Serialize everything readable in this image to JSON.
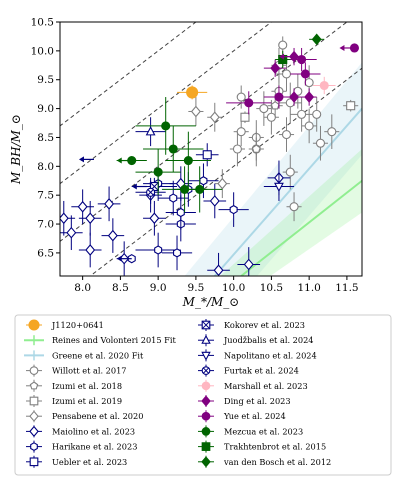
{
  "chart_data": {
    "type": "scatter",
    "xlabel": "M_*/M_⊙",
    "ylabel": "M_BH/M_⊙",
    "xlim": [
      7.7,
      11.7
    ],
    "ylim": [
      6.1,
      10.5
    ],
    "xticks": [
      "8.0",
      "8.5",
      "9.0",
      "9.5",
      "10.0",
      "10.5",
      "11.0",
      "11.5"
    ],
    "yticks": [
      "6.5",
      "7.0",
      "7.5",
      "8.0",
      "8.5",
      "9.0",
      "9.5",
      "10.0",
      "10.5"
    ],
    "xtick_values": [
      8.0,
      8.5,
      9.0,
      9.5,
      10.0,
      10.5,
      11.0,
      11.5
    ],
    "ytick_values": [
      6.5,
      7.0,
      7.5,
      8.0,
      8.5,
      9.0,
      9.5,
      10.0,
      10.5
    ],
    "grid": false,
    "legend_placement": "below",
    "dashed_lines": [
      {
        "offset": -2.0
      },
      {
        "offset": -1.0
      },
      {
        "offset": 0.0
      },
      {
        "offset": 1.0
      }
    ],
    "fits": [
      {
        "name": "Reines and Volonteri 2015 Fit",
        "color": "#90ee90",
        "x": [
          10.1,
          11.7
        ],
        "y": [
          6.1,
          7.75
        ],
        "band": 0.55
      },
      {
        "name": "Greene et al. 2020 Fit",
        "color": "#add8e6",
        "x": [
          9.75,
          11.7
        ],
        "y": [
          6.1,
          9.0
        ],
        "band": 0.8
      }
    ],
    "series": [
      {
        "name": "J1120+0641",
        "marker": "circle-filled",
        "color": "#f5a623",
        "points": [
          [
            9.45,
            9.28,
            0.2,
            0.12
          ]
        ]
      },
      {
        "name": "Willott et al. 2017",
        "marker": "circle-open",
        "color": "#808080",
        "points": [
          [
            10.65,
            10.1,
            0.0,
            0.15
          ],
          [
            10.6,
            9.75,
            0.1,
            0.3
          ],
          [
            10.7,
            9.6,
            0.15,
            0.3
          ],
          [
            10.6,
            9.3,
            0.1,
            0.3
          ],
          [
            10.75,
            9.1,
            0.15,
            0.35
          ],
          [
            10.9,
            8.9,
            0.15,
            0.3
          ],
          [
            10.5,
            8.85,
            0.1,
            0.3
          ],
          [
            10.1,
            8.6,
            0.1,
            0.25
          ],
          [
            10.05,
            8.3,
            0.1,
            0.3
          ],
          [
            10.3,
            8.5,
            0.1,
            0.3
          ],
          [
            10.7,
            8.55,
            0.1,
            0.3
          ],
          [
            11.0,
            8.7,
            0.1,
            0.3
          ],
          [
            11.15,
            8.4,
            0.1,
            0.3
          ],
          [
            11.3,
            8.6,
            0.1,
            0.3
          ],
          [
            10.75,
            7.9,
            0.1,
            0.3
          ],
          [
            10.8,
            7.3,
            0.1,
            0.25
          ],
          [
            10.4,
            9.0,
            0.1,
            0.3
          ],
          [
            10.1,
            9.2,
            0.05,
            0.2
          ],
          [
            10.3,
            8.3,
            0.05,
            0.3
          ],
          [
            11.1,
            8.9,
            0.05,
            0.3
          ],
          [
            10.85,
            9.3,
            0.05,
            0.3
          ],
          [
            11.0,
            9.45,
            0.05,
            0.3
          ]
        ]
      },
      {
        "name": "Izumi et al. 2018",
        "marker": "pentagon-open",
        "color": "#808080",
        "points": [
          [
            10.3,
            8.3,
            0.1,
            0.2
          ],
          [
            10.55,
            9.05,
            0.1,
            0.2
          ]
        ]
      },
      {
        "name": "Izumi et al. 2019",
        "marker": "square-open",
        "color": "#808080",
        "points": [
          [
            11.55,
            9.05,
            0.1,
            0.1
          ],
          [
            10.15,
            8.85,
            0.05,
            0.1
          ]
        ]
      },
      {
        "name": "Pensabene et al. 2020",
        "marker": "diamond-open",
        "color": "#808080",
        "points": [
          [
            9.75,
            8.85,
            0.1,
            0.25
          ],
          [
            9.85,
            7.7,
            0.1,
            0.25
          ],
          [
            9.5,
            8.95,
            0.1,
            0.25
          ]
        ]
      },
      {
        "name": "Maiolino et al. 2023",
        "marker": "diamond-open",
        "color": "#00007f",
        "points": [
          [
            7.75,
            7.1,
            0.15,
            0.3
          ],
          [
            7.85,
            6.85,
            0.15,
            0.3
          ],
          [
            8.0,
            7.3,
            0.15,
            0.3
          ],
          [
            8.1,
            6.55,
            0.15,
            0.3
          ],
          [
            8.35,
            7.35,
            0.15,
            0.3
          ],
          [
            8.4,
            6.8,
            0.15,
            0.3
          ],
          [
            8.55,
            6.4,
            0.1,
            0.3
          ],
          [
            8.9,
            7.5,
            0.15,
            0.3
          ],
          [
            8.95,
            7.1,
            0.15,
            0.3
          ],
          [
            9.3,
            7.7,
            0.15,
            0.3
          ],
          [
            9.75,
            7.4,
            0.15,
            0.3
          ],
          [
            9.8,
            6.2,
            0.15,
            0.3
          ],
          [
            10.2,
            6.3,
            0.15,
            0.3
          ],
          [
            10.6,
            7.8,
            0.15,
            0.3
          ],
          [
            8.1,
            7.1,
            0.15,
            0.3
          ]
        ]
      },
      {
        "name": "Harikane et al. 2023",
        "marker": "hexagon-open",
        "color": "#00007f",
        "points": [
          [
            8.65,
            6.4,
            0.0,
            0.0
          ],
          [
            9.0,
            6.55,
            0.3,
            0.3
          ],
          [
            9.25,
            6.5,
            0.2,
            0.3
          ],
          [
            9.3,
            7.0,
            0.2,
            0.3
          ],
          [
            9.0,
            7.7,
            0.2,
            0.3
          ],
          [
            9.4,
            7.6,
            0.2,
            0.3
          ],
          [
            9.6,
            7.75,
            0.2,
            0.3
          ],
          [
            10.0,
            7.25,
            0.2,
            0.3
          ],
          [
            9.2,
            7.45,
            0.2,
            0.3
          ],
          [
            9.3,
            7.2,
            0.2,
            0.3
          ]
        ]
      },
      {
        "name": "Uebler et al. 2023",
        "marker": "square-open",
        "color": "#00007f",
        "points": [
          [
            9.65,
            8.2,
            0.15,
            0.2
          ]
        ]
      },
      {
        "name": "Kokorev et al. 2023",
        "marker": "square-x",
        "color": "#00007f",
        "points": [
          [
            8.95,
            7.65,
            0.3,
            0.15
          ]
        ]
      },
      {
        "name": "Juodžbalis et al. 2024",
        "marker": "triangle-up-open",
        "color": "#00007f",
        "points": [
          [
            8.9,
            8.6,
            0.2,
            0.25
          ]
        ]
      },
      {
        "name": "Napolitano et al. 2024",
        "marker": "triangle-down-open",
        "color": "#00007f",
        "points": [
          [
            10.6,
            7.65,
            0.2,
            0.25
          ]
        ]
      },
      {
        "name": "Furtak et al. 2024",
        "marker": "circle-x",
        "color": "#00007f",
        "points": [
          [
            8.9,
            7.55,
            0.2,
            0.2
          ]
        ]
      },
      {
        "name": "Marshall et al. 2023",
        "marker": "circle-filled",
        "color": "#ffb6c1",
        "points": [
          [
            11.2,
            9.4,
            0.15,
            0.15
          ]
        ]
      },
      {
        "name": "Ding et al. 2023",
        "marker": "diamond-filled",
        "color": "#800080",
        "points": [
          [
            10.55,
            9.7,
            0.15,
            0.15
          ],
          [
            10.8,
            9.9,
            0.1,
            0.15
          ],
          [
            10.8,
            9.2,
            0.1,
            0.15
          ],
          [
            11.0,
            9.2,
            0.1,
            0.15
          ]
        ]
      },
      {
        "name": "Yue et al. 2024",
        "marker": "circle-filled",
        "color": "#800080",
        "points": [
          [
            11.6,
            10.05,
            0.0,
            0.0
          ],
          [
            10.2,
            9.1,
            0.3,
            0.2
          ],
          [
            10.6,
            9.2,
            0.2,
            0.2
          ],
          [
            10.95,
            9.6,
            0.2,
            0.2
          ],
          [
            10.9,
            9.85,
            0.2,
            0.2
          ]
        ]
      },
      {
        "name": "Mezcua et al. 2023",
        "marker": "circle-filled",
        "color": "#006400",
        "points": [
          [
            8.65,
            8.1,
            0.2,
            0.0
          ],
          [
            9.0,
            7.9,
            0.3,
            0.4
          ],
          [
            9.1,
            8.7,
            0.4,
            0.5
          ],
          [
            9.2,
            8.3,
            0.4,
            0.4
          ],
          [
            9.35,
            7.6,
            0.3,
            0.4
          ],
          [
            9.4,
            8.1,
            0.3,
            0.5
          ],
          [
            9.55,
            7.6,
            0.3,
            0.4
          ]
        ]
      },
      {
        "name": "Trakhtenbrot et al. 2015",
        "marker": "square-filled",
        "color": "#006400",
        "points": [
          [
            10.65,
            9.85,
            0.1,
            0.15
          ]
        ]
      },
      {
        "name": "van den Bosch et al. 2012",
        "marker": "diamond-filled",
        "color": "#006400",
        "points": [
          [
            11.1,
            10.2,
            0.1,
            0.05
          ]
        ]
      }
    ],
    "upper_limits_x": [
      {
        "series": "Harikane et al. 2023",
        "x": 8.65,
        "y": 6.4
      },
      {
        "series": "Yue et al. 2024",
        "x": 11.6,
        "y": 10.05
      },
      {
        "series": "Mezcua et al. 2023",
        "x": 8.65,
        "y": 8.1
      },
      {
        "series": "Maiolino et al. 2023",
        "x": 8.15,
        "y": 8.12
      },
      {
        "series": "Kokorev et al. 2023",
        "x": 8.85,
        "y": 7.65
      },
      {
        "series": "Ding et al. 2023",
        "x": 10.8,
        "y": 9.9
      }
    ]
  }
}
